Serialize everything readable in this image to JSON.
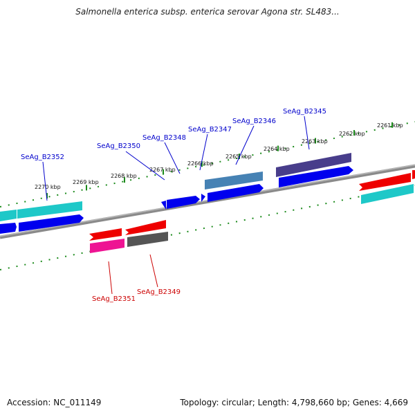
{
  "title": "Salmonella enterica subsp. enterica serovar Agona str. SL483...",
  "footer": {
    "accession_label": "Accession: NC_011149",
    "summary_label": "Topology: circular; Length: 4,798,660 bp; Genes: 4,669"
  },
  "colors": {
    "scale_green": "#1a8a1a",
    "backbone": "#8a8a8a",
    "label_blue": "#0000cc",
    "label_red": "#cc0000",
    "cds_blue": "#0000ee",
    "cds_red": "#ee0000",
    "gene_cyan": "#1ec8c8",
    "gene_steel": "#4682b4",
    "gene_navy": "#483d8b",
    "gene_pink": "#ee1493",
    "gene_grey": "#555555"
  },
  "upper_ticks": [
    {
      "label": "2270 kbp"
    },
    {
      "label": "2269 kbp"
    },
    {
      "label": "2268 kbp"
    },
    {
      "label": "2267 kbp"
    },
    {
      "label": "2266 kbp"
    },
    {
      "label": "2265 kbp"
    },
    {
      "label": "2264 kbp"
    },
    {
      "label": "2263 kbp"
    },
    {
      "label": "2262 kbp"
    },
    {
      "label": "2261 kbp"
    }
  ],
  "gene_labels_top": [
    {
      "label": "SeAg_B2352"
    },
    {
      "label": "SeAg_B2350"
    },
    {
      "label": "SeAg_B2348"
    },
    {
      "label": "SeAg_B2347"
    },
    {
      "label": "SeAg_B2346"
    },
    {
      "label": "SeAg_B2345"
    }
  ],
  "gene_labels_bottom": [
    {
      "label": "SeAg_B2351"
    },
    {
      "label": "SeAg_B2349"
    }
  ]
}
